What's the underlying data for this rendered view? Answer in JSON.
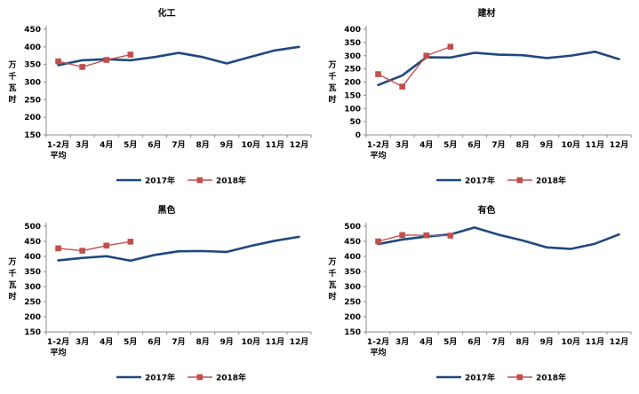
{
  "page": {
    "background": "#ffffff"
  },
  "style": {
    "series1_color": "#1F497D",
    "series2_color": "#C0504D",
    "axis_color": "#8C8C8C",
    "text_color": "#000000"
  },
  "legend": {
    "items": [
      {
        "label": "2017年",
        "marker": "line"
      },
      {
        "label": "2018年",
        "marker": "line-square"
      }
    ]
  },
  "chart_data": [
    {
      "type": "line",
      "title": "化工",
      "ylabel": "万千瓦时",
      "ylim": [
        150,
        450
      ],
      "ytick_step": 50,
      "grid": false,
      "legend_position": "bottom",
      "categories": [
        "1-2月|平均",
        "3月",
        "4月",
        "5月",
        "6月",
        "7月",
        "8月",
        "9月",
        "10月",
        "11月",
        "12月"
      ],
      "series": [
        {
          "name": "2017年",
          "color": "#1F497D",
          "marker": "none",
          "values": [
            348,
            362,
            365,
            362,
            371,
            383,
            371,
            353,
            372,
            390,
            400
          ]
        },
        {
          "name": "2018年",
          "color": "#C0504D",
          "marker": "square",
          "values": [
            359,
            343,
            363,
            378
          ]
        }
      ]
    },
    {
      "type": "line",
      "title": "建材",
      "ylabel": "万千瓦时",
      "ylim": [
        0,
        400
      ],
      "ytick_step": 50,
      "grid": false,
      "legend_position": "bottom",
      "categories": [
        "1-2月|平均",
        "3月",
        "4月",
        "5月",
        "6月",
        "7月",
        "8月",
        "9月",
        "10月",
        "11月",
        "12月"
      ],
      "series": [
        {
          "name": "2017年",
          "color": "#1F497D",
          "marker": "none",
          "values": [
            189,
            225,
            294,
            293,
            311,
            304,
            302,
            291,
            300,
            315,
            287
          ]
        },
        {
          "name": "2018年",
          "color": "#C0504D",
          "marker": "square",
          "values": [
            230,
            183,
            300,
            334
          ]
        }
      ]
    },
    {
      "type": "line",
      "title": "黑色",
      "ylabel": "万千瓦时",
      "ylim": [
        150,
        500
      ],
      "ytick_step": 50,
      "grid": false,
      "legend_position": "bottom",
      "categories": [
        "1-2月|平均",
        "3月",
        "4月",
        "5月",
        "6月",
        "7月",
        "8月",
        "9月",
        "10月",
        "11月",
        "12月"
      ],
      "series": [
        {
          "name": "2017年",
          "color": "#1F497D",
          "marker": "none",
          "values": [
            387,
            395,
            401,
            386,
            405,
            417,
            418,
            415,
            435,
            452,
            465
          ]
        },
        {
          "name": "2018年",
          "color": "#C0504D",
          "marker": "square",
          "values": [
            427,
            419,
            436,
            449
          ]
        }
      ]
    },
    {
      "type": "line",
      "title": "有色",
      "ylabel": "万千瓦时",
      "ylim": [
        150,
        500
      ],
      "ytick_step": 50,
      "grid": false,
      "legend_position": "bottom",
      "categories": [
        "1-2月|平均",
        "3月",
        "4月",
        "5月",
        "6月",
        "7月",
        "8月",
        "9月",
        "10月",
        "11月",
        "12月"
      ],
      "series": [
        {
          "name": "2017年",
          "color": "#1F497D",
          "marker": "none",
          "values": [
            441,
            456,
            466,
            473,
            496,
            472,
            453,
            430,
            425,
            442,
            473
          ]
        },
        {
          "name": "2018年",
          "color": "#C0504D",
          "marker": "square",
          "values": [
            450,
            471,
            470,
            469
          ]
        }
      ]
    }
  ]
}
